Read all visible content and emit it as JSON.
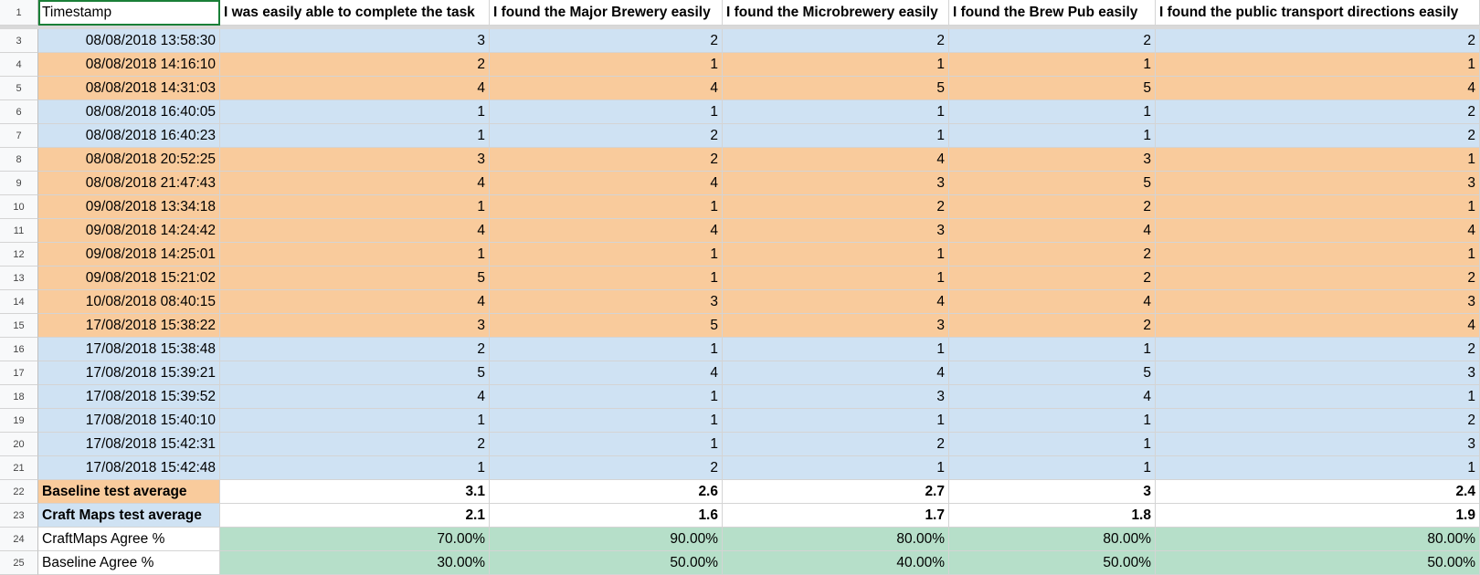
{
  "sheet": {
    "colors": {
      "blue": "#cfe2f3",
      "orange": "#f9cb9c",
      "green": "#b6dfc9",
      "selection": "#1a7f37"
    },
    "header": {
      "row_number": "1",
      "cells": [
        "Timestamp",
        "I was easily able to complete the task",
        "I found the Major Brewery easily",
        "I found the Microbrewery easily",
        "I found the Brew Pub easily",
        "I found the public transport directions easily"
      ]
    },
    "rows": [
      {
        "n": "3",
        "color": "blue",
        "ts": "08/08/2018 13:58:30",
        "v": [
          "3",
          "2",
          "2",
          "2",
          "2"
        ]
      },
      {
        "n": "4",
        "color": "orange",
        "ts": "08/08/2018 14:16:10",
        "v": [
          "2",
          "1",
          "1",
          "1",
          "1"
        ]
      },
      {
        "n": "5",
        "color": "orange",
        "ts": "08/08/2018 14:31:03",
        "v": [
          "4",
          "4",
          "5",
          "5",
          "4"
        ]
      },
      {
        "n": "6",
        "color": "blue",
        "ts": "08/08/2018 16:40:05",
        "v": [
          "1",
          "1",
          "1",
          "1",
          "2"
        ]
      },
      {
        "n": "7",
        "color": "blue",
        "ts": "08/08/2018 16:40:23",
        "v": [
          "1",
          "2",
          "1",
          "1",
          "2"
        ]
      },
      {
        "n": "8",
        "color": "orange",
        "ts": "08/08/2018 20:52:25",
        "v": [
          "3",
          "2",
          "4",
          "3",
          "1"
        ]
      },
      {
        "n": "9",
        "color": "orange",
        "ts": "08/08/2018 21:47:43",
        "v": [
          "4",
          "4",
          "3",
          "5",
          "3"
        ]
      },
      {
        "n": "10",
        "color": "orange",
        "ts": "09/08/2018 13:34:18",
        "v": [
          "1",
          "1",
          "2",
          "2",
          "1"
        ]
      },
      {
        "n": "11",
        "color": "orange",
        "ts": "09/08/2018 14:24:42",
        "v": [
          "4",
          "4",
          "3",
          "4",
          "4"
        ]
      },
      {
        "n": "12",
        "color": "orange",
        "ts": "09/08/2018 14:25:01",
        "v": [
          "1",
          "1",
          "1",
          "2",
          "1"
        ]
      },
      {
        "n": "13",
        "color": "orange",
        "ts": "09/08/2018 15:21:02",
        "v": [
          "5",
          "1",
          "1",
          "2",
          "2"
        ]
      },
      {
        "n": "14",
        "color": "orange",
        "ts": "10/08/2018 08:40:15",
        "v": [
          "4",
          "3",
          "4",
          "4",
          "3"
        ]
      },
      {
        "n": "15",
        "color": "orange",
        "ts": "17/08/2018 15:38:22",
        "v": [
          "3",
          "5",
          "3",
          "2",
          "4"
        ]
      },
      {
        "n": "16",
        "color": "blue",
        "ts": "17/08/2018 15:38:48",
        "v": [
          "2",
          "1",
          "1",
          "1",
          "2"
        ]
      },
      {
        "n": "17",
        "color": "blue",
        "ts": "17/08/2018 15:39:21",
        "v": [
          "5",
          "4",
          "4",
          "5",
          "3"
        ]
      },
      {
        "n": "18",
        "color": "blue",
        "ts": "17/08/2018 15:39:52",
        "v": [
          "4",
          "1",
          "3",
          "4",
          "1"
        ]
      },
      {
        "n": "19",
        "color": "blue",
        "ts": "17/08/2018 15:40:10",
        "v": [
          "1",
          "1",
          "1",
          "1",
          "2"
        ]
      },
      {
        "n": "20",
        "color": "blue",
        "ts": "17/08/2018 15:42:31",
        "v": [
          "2",
          "1",
          "2",
          "1",
          "3"
        ]
      },
      {
        "n": "21",
        "color": "blue",
        "ts": "17/08/2018 15:42:48",
        "v": [
          "1",
          "2",
          "1",
          "1",
          "1"
        ]
      }
    ],
    "summary": [
      {
        "n": "22",
        "label": "Baseline test average",
        "label_color": "orange",
        "bold": true,
        "value_color": "white",
        "v": [
          "3.1",
          "2.6",
          "2.7",
          "3",
          "2.4"
        ]
      },
      {
        "n": "23",
        "label": "Craft Maps test average",
        "label_color": "blue",
        "bold": true,
        "value_color": "white",
        "v": [
          "2.1",
          "1.6",
          "1.7",
          "1.8",
          "1.9"
        ]
      },
      {
        "n": "24",
        "label": "CraftMaps Agree %",
        "label_color": "white",
        "bold": false,
        "value_color": "green",
        "v": [
          "70.00%",
          "90.00%",
          "80.00%",
          "80.00%",
          "80.00%"
        ]
      },
      {
        "n": "25",
        "label": "Baseline Agree %",
        "label_color": "white",
        "bold": false,
        "value_color": "green",
        "v": [
          "30.00%",
          "50.00%",
          "40.00%",
          "50.00%",
          "50.00%"
        ]
      }
    ]
  }
}
